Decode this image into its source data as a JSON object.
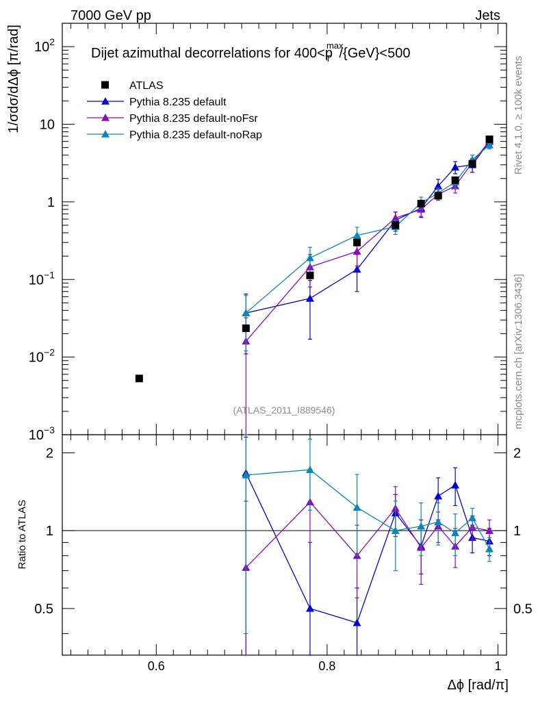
{
  "header": {
    "left": "7000 GeV pp",
    "right": "Jets"
  },
  "side_text": {
    "rivet": "Rivet 4.1.0, ≥ 100k events",
    "mcplots": "mcplots.cern.ch [arXiv:1306.3436]"
  },
  "chart_data": {
    "type": "scatter",
    "title_main": "Dijet azimuthal decorrelations for 400<p",
    "title_sup": "max",
    "title_sub": "T",
    "title_rest": "/{GeV}<500",
    "analysis_id": "(ATLAS_2011_I889546)",
    "ylabel": "1/σdσ/dΔϕ [π/rad]",
    "ratio_ylabel": "Ratio to ATLAS",
    "xlabel": "Δϕ [rad/π]",
    "xlim": [
      0.49,
      1.01
    ],
    "ylim": [
      0.001,
      200
    ],
    "ratio_ylim": [
      0.33,
      2.35
    ],
    "colors": {
      "data": "#000000",
      "default": "#0000d0",
      "noFsr": "#8a0bb5",
      "noRap": "#0a87b8",
      "reference_line": "#000000"
    },
    "x_tick_labels": [
      "0.6",
      "0.8",
      "1"
    ],
    "x_ticks": [
      0.6,
      0.8,
      1.0
    ],
    "y_tick_labels": [
      {
        "base": "10",
        "exp": "2",
        "value": 100
      },
      {
        "base": "10",
        "exp": "",
        "value": 10
      },
      {
        "base": "1",
        "exp": "",
        "value": 1
      },
      {
        "base": "10",
        "exp": "−1",
        "value": 0.1
      },
      {
        "base": "10",
        "exp": "−2",
        "value": 0.01
      },
      {
        "base": "10",
        "exp": "−3",
        "value": 0.001
      }
    ],
    "ratio_tick_labels": [
      "2",
      "1",
      "0.5"
    ],
    "ratio_ticks": [
      2,
      1,
      0.5
    ],
    "legend": [
      {
        "key": "data",
        "label": "ATLAS"
      },
      {
        "key": "default",
        "label": "Pythia 8.235 default"
      },
      {
        "key": "noFsr",
        "label": "Pythia 8.235 default-noFsr"
      },
      {
        "key": "noRap",
        "label": "Pythia 8.235 default-noRap"
      }
    ],
    "data": {
      "name": "ATLAS",
      "x": [
        0.58,
        0.705,
        0.78,
        0.835,
        0.88,
        0.91,
        0.93,
        0.95,
        0.97,
        0.99
      ],
      "y": [
        0.0053,
        0.0235,
        0.113,
        0.3,
        0.5,
        0.95,
        1.2,
        1.9,
        3.1,
        6.4
      ]
    },
    "series": [
      {
        "name": "Pythia 8.235 default",
        "key": "default",
        "x": [
          0.705,
          0.78,
          0.835,
          0.88,
          0.91,
          0.93,
          0.95,
          0.97,
          0.99
        ],
        "y": [
          0.037,
          0.057,
          0.135,
          0.58,
          0.83,
          1.6,
          2.8,
          3.0,
          6.0
        ],
        "ylo": [
          0.011,
          0.017,
          0.07,
          0.42,
          0.63,
          1.3,
          2.3,
          2.4,
          5.2
        ],
        "yhi": [
          0.065,
          0.097,
          0.21,
          0.74,
          1.05,
          1.95,
          3.3,
          3.6,
          6.8
        ],
        "ratio": [
          1.67,
          0.5,
          0.44,
          1.17,
          0.87,
          1.36,
          1.5,
          0.94,
          0.91
        ],
        "ratio_lo": [
          0.3,
          0.1,
          0.3,
          0.95,
          0.68,
          1.1,
          1.25,
          0.82,
          0.8
        ],
        "ratio_hi": [
          2.3,
          0.9,
          0.6,
          1.38,
          1.1,
          1.6,
          1.75,
          1.05,
          1.02
        ]
      },
      {
        "name": "Pythia 8.235 default-noFsr",
        "key": "noFsr",
        "x": [
          0.705,
          0.78,
          0.835,
          0.88,
          0.91,
          0.93,
          0.95,
          0.97,
          0.99
        ],
        "y": [
          0.016,
          0.145,
          0.23,
          0.62,
          0.8,
          1.25,
          1.6,
          3.2,
          6.1
        ],
        "ylo": [
          0.0009,
          0.08,
          0.15,
          0.5,
          0.65,
          1.05,
          1.3,
          2.8,
          5.4
        ],
        "yhi": [
          0.032,
          0.21,
          0.31,
          0.74,
          0.95,
          1.45,
          1.9,
          3.6,
          6.8
        ],
        "ratio": [
          0.72,
          1.29,
          0.8,
          1.22,
          0.86,
          1.04,
          0.87,
          1.03,
          1.0
        ],
        "ratio_lo": [
          0.3,
          0.9,
          0.55,
          0.95,
          0.62,
          0.9,
          0.72,
          0.92,
          0.9
        ],
        "ratio_hi": [
          1.3,
          1.68,
          1.05,
          1.48,
          1.1,
          1.18,
          1.02,
          1.14,
          1.1
        ]
      },
      {
        "name": "Pythia 8.235 default-noRap",
        "key": "noRap",
        "x": [
          0.705,
          0.78,
          0.835,
          0.88,
          0.91,
          0.93,
          0.95,
          0.97,
          0.99
        ],
        "y": [
          0.037,
          0.19,
          0.37,
          0.48,
          0.97,
          1.3,
          1.8,
          3.5,
          5.4
        ],
        "ylo": [
          0.012,
          0.12,
          0.27,
          0.38,
          0.8,
          1.1,
          1.5,
          3.0,
          4.8
        ],
        "yhi": [
          0.062,
          0.26,
          0.47,
          0.58,
          1.15,
          1.5,
          2.1,
          4.0,
          6.0
        ],
        "ratio": [
          1.64,
          1.72,
          1.23,
          1.0,
          1.04,
          1.08,
          0.98,
          1.12,
          0.85
        ],
        "ratio_lo": [
          0.4,
          1.2,
          0.8,
          0.7,
          0.8,
          0.88,
          0.8,
          1.02,
          0.76
        ],
        "ratio_hi": [
          2.35,
          2.26,
          1.65,
          1.3,
          1.28,
          1.28,
          1.16,
          1.22,
          0.94
        ]
      }
    ]
  }
}
